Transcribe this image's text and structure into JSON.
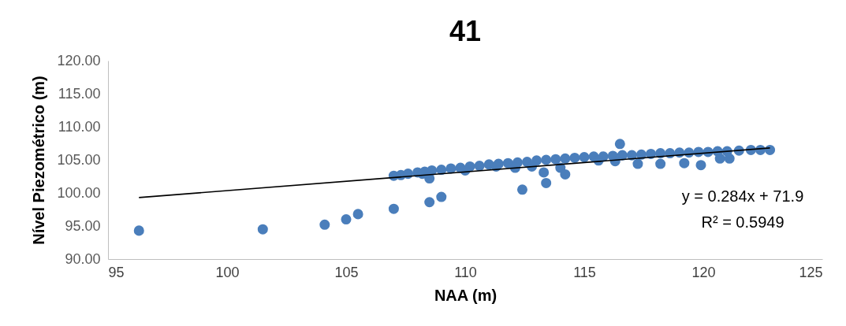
{
  "chart_data": {
    "type": "scatter",
    "title": "41",
    "xlabel": "NAA (m)",
    "ylabel": "Nível Piezométrico (m)",
    "xlim": [
      95,
      125
    ],
    "xticks": [
      95,
      100,
      105,
      110,
      115,
      120,
      125
    ],
    "ylim": [
      90,
      120
    ],
    "yticks": [
      {
        "value": 90,
        "label": "90.00"
      },
      {
        "value": 95,
        "label": "95.00"
      },
      {
        "value": 100,
        "label": "100.00"
      },
      {
        "value": 105,
        "label": "105.00"
      },
      {
        "value": 110,
        "label": "110.00"
      },
      {
        "value": 115,
        "label": "115.00"
      },
      {
        "value": 120,
        "label": "120.00"
      }
    ],
    "grid": false,
    "annotations": [
      "y = 0.284x + 71.9",
      "R² = 0.5949"
    ],
    "series": [
      {
        "color": "#4a7ebb",
        "marker": "circle",
        "x": [
          96.3,
          101.5,
          104.1,
          105.0,
          105.5,
          107.0,
          108.5,
          109.0,
          112.4,
          113.4,
          113.3,
          116.5,
          107.0,
          107.3,
          107.6,
          108.0,
          108.3,
          108.6,
          109.0,
          109.4,
          109.8,
          110.2,
          110.6,
          111.0,
          111.4,
          111.8,
          112.2,
          112.6,
          113.0,
          113.4,
          113.8,
          114.2,
          114.6,
          115.0,
          115.4,
          115.8,
          116.2,
          116.6,
          117.0,
          117.4,
          117.8,
          118.2,
          118.6,
          119.0,
          119.4,
          119.8,
          120.2,
          120.6,
          121.0,
          121.5,
          122.0,
          122.4,
          122.8,
          108.5,
          112.1,
          112.8,
          114.0,
          114.2,
          117.25,
          118.2,
          119.9,
          120.7,
          121.1,
          108.2,
          110.0,
          111.3,
          115.6,
          116.3,
          119.2
        ],
        "values": [
          94.3,
          94.5,
          95.2,
          96.0,
          96.8,
          97.6,
          98.6,
          99.4,
          100.5,
          101.5,
          103.1,
          107.4,
          102.6,
          102.7,
          102.9,
          103.1,
          103.2,
          103.4,
          103.5,
          103.7,
          103.8,
          104.0,
          104.1,
          104.3,
          104.4,
          104.5,
          104.6,
          104.7,
          104.9,
          105.0,
          105.1,
          105.2,
          105.3,
          105.4,
          105.5,
          105.5,
          105.6,
          105.7,
          105.7,
          105.8,
          105.9,
          106.0,
          106.0,
          106.1,
          106.1,
          106.2,
          106.2,
          106.3,
          106.3,
          106.4,
          106.5,
          106.5,
          106.5,
          102.2,
          103.8,
          104.0,
          103.8,
          102.8,
          104.4,
          104.4,
          104.2,
          105.2,
          105.2,
          102.9,
          103.4,
          104.0,
          104.9,
          104.8,
          104.5
        ]
      },
      {
        "type": "line",
        "color": "#000000",
        "x": [
          96.3,
          122.8
        ],
        "values": [
          99.3,
          106.8
        ]
      }
    ]
  }
}
